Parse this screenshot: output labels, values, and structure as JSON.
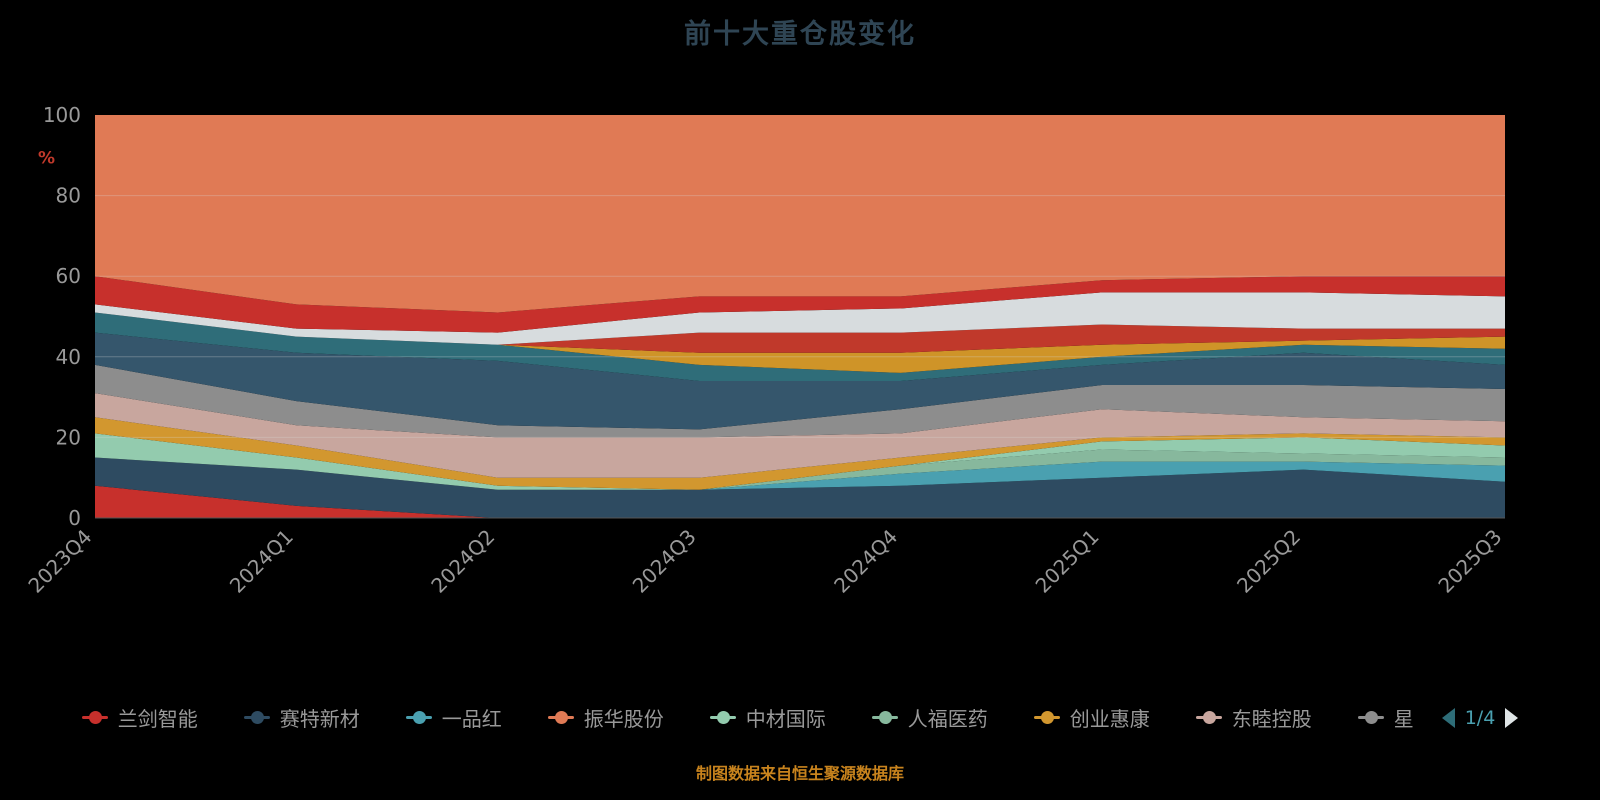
{
  "title": "前十大重仓股变化",
  "footer": "制图数据来自恒生聚源数据库",
  "y_axis": {
    "unit": "%",
    "unit_color": "#c0392b",
    "ticks": [
      0,
      20,
      40,
      60,
      80,
      100
    ]
  },
  "legend": {
    "page_label": "1/4",
    "items": [
      {
        "label": "兰剑智能",
        "color": "#c7302c"
      },
      {
        "label": "赛特新材",
        "color": "#2e4b61"
      },
      {
        "label": "一品红",
        "color": "#4aa0b0"
      },
      {
        "label": "振华股份",
        "color": "#e07a55"
      },
      {
        "label": "中材国际",
        "color": "#93cbae"
      },
      {
        "label": "人福医药",
        "color": "#87b89d"
      },
      {
        "label": "创业惠康",
        "color": "#d2972f"
      },
      {
        "label": "东睦控股",
        "color": "#c8a69e"
      },
      {
        "label": "星",
        "color": "#8d8d8d"
      }
    ]
  },
  "chart_data": {
    "type": "area",
    "stacked": true,
    "title": "前十大重仓股变化",
    "ylabel": "%",
    "ylim": [
      0,
      100
    ],
    "y_ticks": [
      0,
      20,
      40,
      60,
      80,
      100
    ],
    "grid": true,
    "legend_position": "bottom",
    "categories": [
      "2023Q4",
      "2024Q1",
      "2024Q2",
      "2024Q3",
      "2024Q4",
      "2025Q1",
      "2025Q2",
      "2025Q3"
    ],
    "series": [
      {
        "name": "兰剑智能",
        "color": "#c7302c",
        "values": [
          8,
          3,
          0,
          0,
          0,
          0,
          0,
          0
        ]
      },
      {
        "name": "赛特新材",
        "color": "#2e4b61",
        "values": [
          7,
          9,
          7,
          7,
          8,
          10,
          12,
          9
        ]
      },
      {
        "name": "一品红",
        "color": "#4aa0b0",
        "values": [
          0,
          0,
          0,
          0,
          3,
          4,
          2,
          4
        ]
      },
      {
        "name": "人福医药",
        "color": "#87b89d",
        "values": [
          0,
          0,
          0,
          0,
          2,
          3,
          2,
          2
        ]
      },
      {
        "name": "中材国际",
        "color": "#93cbae",
        "values": [
          6,
          3,
          1,
          0,
          0,
          2,
          4,
          3
        ]
      },
      {
        "name": "创业惠康",
        "color": "#d2972f",
        "values": [
          4,
          3,
          2,
          3,
          2,
          1,
          1,
          2
        ]
      },
      {
        "name": "东睦控股",
        "color": "#c8a69e",
        "values": [
          6,
          5,
          10,
          10,
          6,
          7,
          4,
          4
        ]
      },
      {
        "name": "星",
        "color": "#8d8d8d",
        "values": [
          7,
          6,
          3,
          2,
          6,
          6,
          8,
          8
        ]
      },
      {
        "name": "",
        "color": "#35566c",
        "values": [
          8,
          12,
          16,
          12,
          7,
          5,
          8,
          6
        ]
      },
      {
        "name": "",
        "color": "#2f6d79",
        "values": [
          5,
          4,
          4,
          4,
          2,
          2,
          2,
          4
        ]
      },
      {
        "name": "",
        "color": "#cf9428",
        "values": [
          0,
          0,
          0,
          3,
          5,
          3,
          1,
          3
        ]
      },
      {
        "name": "",
        "color": "#c0392b",
        "values": [
          0,
          0,
          0,
          5,
          5,
          5,
          3,
          2
        ]
      },
      {
        "name": "",
        "color": "#d7dcde",
        "values": [
          2,
          2,
          3,
          5,
          6,
          8,
          9,
          8
        ]
      },
      {
        "name": "",
        "color": "#c7302c",
        "values": [
          7,
          6,
          5,
          4,
          3,
          3,
          4,
          5
        ]
      },
      {
        "name": "振华股份",
        "color": "#e07a55",
        "values": [
          40,
          47,
          49,
          45,
          45,
          41,
          40,
          40
        ]
      }
    ]
  }
}
